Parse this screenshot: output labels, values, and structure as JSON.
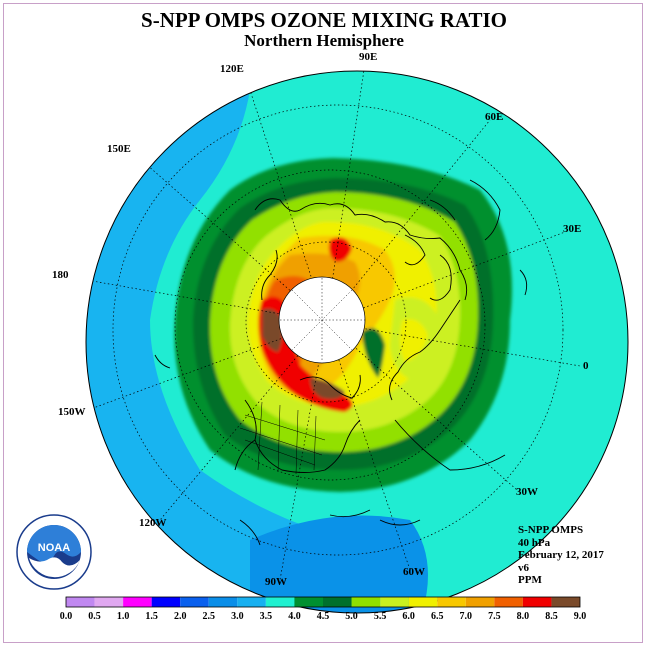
{
  "title": "S-NPP OMPS OZONE MIXING RATIO",
  "subtitle": "Northern Hemisphere",
  "longitude_labels": {
    "e90": "90E",
    "e60": "60E",
    "e30": "30E",
    "zero": "0",
    "w30": "30W",
    "w60": "60W",
    "w90": "90W",
    "w120": "120W",
    "w150": "150W",
    "d180": "180",
    "e150": "150E",
    "e120": "120E"
  },
  "info": {
    "instrument": "S-NPP OMPS",
    "level": "40 hPa",
    "date": "February 12, 2017",
    "version": "v6",
    "units": "PPM"
  },
  "colorbar": {
    "labels": [
      "0.0",
      "0.5",
      "1.0",
      "1.5",
      "2.0",
      "2.5",
      "3.0",
      "3.5",
      "4.0",
      "4.5",
      "5.0",
      "5.5",
      "6.0",
      "6.5",
      "7.0",
      "7.5",
      "8.0",
      "8.5",
      "9.0"
    ],
    "colors": [
      "#c088f0",
      "#e0a8f0",
      "#ff00ff",
      "#0000ff",
      "#0a60ee",
      "#0a8ee8",
      "#18b0f0",
      "#20f0d0",
      "#009030",
      "#00702c",
      "#90e000",
      "#c8f020",
      "#f0f000",
      "#f8c800",
      "#f0a000",
      "#f06000",
      "#f00000",
      "#7a4a2a"
    ]
  },
  "logo": {
    "text": "NOAA"
  },
  "icons": {
    "logo": "noaa-logo-icon"
  }
}
